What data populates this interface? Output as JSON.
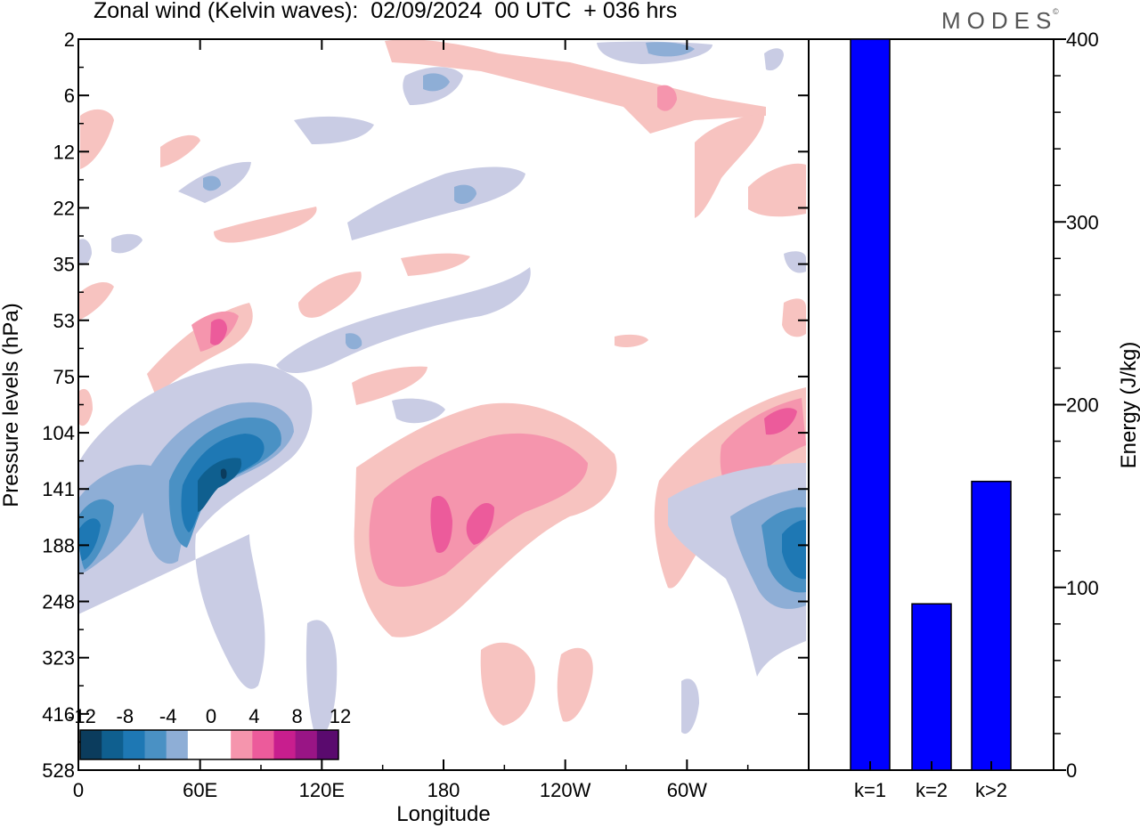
{
  "title": "Zonal wind (Kelvin waves):  02/09/2024  00 UTC  + 036 hrs",
  "brand": "MODES",
  "brand_mark": "©",
  "colors": {
    "negative": [
      "#0b3c5d",
      "#0f5f8f",
      "#1e78b4",
      "#4a91c4",
      "#8eaed6",
      "#c9cce4"
    ],
    "positive": [
      "#f7c3c0",
      "#f595ad",
      "#ec5b9b",
      "#c81e8e",
      "#991585",
      "#5a0a6e"
    ],
    "bar": "#0000ff"
  },
  "chart_data": [
    {
      "type": "heatmap",
      "xlabel": "Longitude",
      "ylabel": "Pressure levels (hPa)",
      "x_ticks": [
        "0",
        "60E",
        "120E",
        "180",
        "120W",
        "60W"
      ],
      "y_ticks": [
        "2",
        "6",
        "12",
        "22",
        "35",
        "53",
        "75",
        "104",
        "141",
        "188",
        "248",
        "323",
        "416",
        "528"
      ],
      "colorbar": {
        "labels": [
          "-12",
          "-8",
          "-4",
          "0",
          "4",
          "8",
          "12"
        ],
        "levels": [
          -12,
          -10,
          -8,
          -6,
          -4,
          -2,
          0,
          2,
          4,
          6,
          8,
          10,
          12
        ]
      },
      "features": [
        {
          "lon": 65,
          "level": 141,
          "value": -12
        },
        {
          "lon": 5,
          "level": 188,
          "value": -8
        },
        {
          "lon": 350,
          "level": 188,
          "value": -8
        },
        {
          "lon": 190,
          "level": 188,
          "value": 7
        },
        {
          "lon": 345,
          "level": 104,
          "value": 6
        }
      ]
    },
    {
      "type": "bar",
      "categories": [
        "k=1",
        "k=2",
        "k>2"
      ],
      "values": [
        400,
        91,
        158
      ],
      "ylabel": "Energy (J/kg)",
      "ylim": [
        0,
        400
      ],
      "yticks": [
        "0",
        "100",
        "200",
        "300",
        "400"
      ]
    }
  ]
}
